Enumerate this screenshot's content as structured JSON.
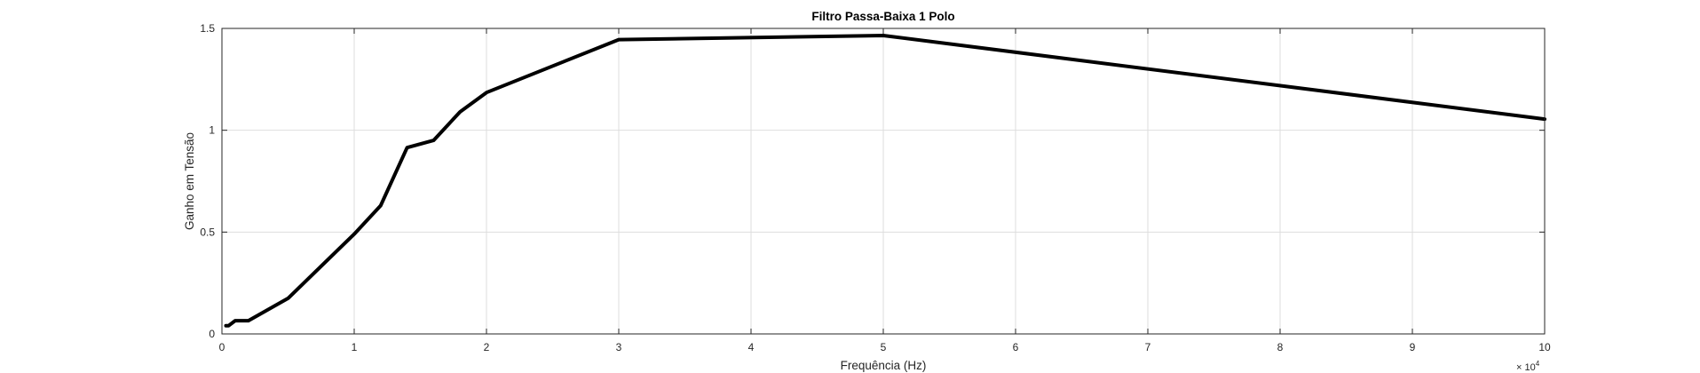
{
  "chart_data": {
    "type": "line",
    "title": "Filtro Passa-Baixa 1 Polo",
    "xlabel": "Frequência (Hz)",
    "ylabel": "Ganho em Tensão",
    "xlim": [
      0,
      100000
    ],
    "ylim": [
      0,
      1.5
    ],
    "x_ticks": [
      0,
      10000,
      20000,
      30000,
      40000,
      50000,
      60000,
      70000,
      80000,
      90000,
      100000
    ],
    "x_tick_labels": [
      "0",
      "1",
      "2",
      "3",
      "4",
      "5",
      "6",
      "7",
      "8",
      "9",
      "10"
    ],
    "x_multiplier": {
      "base": "× 10",
      "exponent": "4"
    },
    "y_ticks": [
      0,
      0.5,
      1,
      1.5
    ],
    "y_tick_labels": [
      "0",
      "0.5",
      "1",
      "1.5"
    ],
    "grid": true,
    "line_color": "#000000",
    "series": [
      {
        "x": [
          300,
          500,
          1000,
          2000,
          5000,
          10000,
          12000,
          14000,
          16000,
          18000,
          20000,
          30000,
          50000,
          100000
        ],
        "y": [
          0.04,
          0.04,
          0.065,
          0.065,
          0.175,
          0.49,
          0.63,
          0.915,
          0.95,
          1.09,
          1.185,
          1.445,
          1.465,
          1.055
        ]
      }
    ]
  }
}
